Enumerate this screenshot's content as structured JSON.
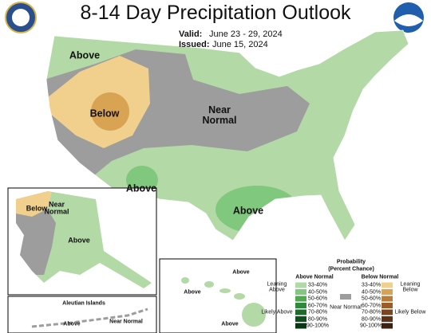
{
  "header": {
    "title": "8-14 Day Precipitation Outlook",
    "valid_label": "Valid:",
    "valid": "June 23 - 29, 2024",
    "issued_label": "Issued:",
    "issued": "June 15, 2024"
  },
  "map": {
    "labels": [
      "Above",
      "Below",
      "Near Normal",
      "Above",
      "Above"
    ],
    "alaska_labels": [
      "Below",
      "Near Normal",
      "Above"
    ],
    "aleutian_title": "Aleutian Islands",
    "aleutian_labels": [
      "Above",
      "Near Normal"
    ],
    "hawaii_labels": [
      "Above",
      "Above",
      "Above"
    ]
  },
  "legend": {
    "title": "Probability",
    "subtitle": "(Percent Chance)",
    "above_header": "Above Normal",
    "below_header": "Below Normal",
    "leaning_above": "Leaning Above",
    "likely_above": "Likely Above",
    "near_normal": "Near Normal",
    "leaning_below": "Leaning Below",
    "likely_below": "Likely Below",
    "classes": [
      "33-40%",
      "40-50%",
      "50-60%",
      "60-70%",
      "70-80%",
      "80-90%",
      "90-100%"
    ],
    "above_colors": [
      "#b3d9a6",
      "#80c87e",
      "#4fa94f",
      "#2c8a3a",
      "#1c6b2a",
      "#0e4f1c",
      "#083812"
    ],
    "below_colors": [
      "#f0d08c",
      "#d8a352",
      "#b97c3a",
      "#9b5e2b",
      "#7c4520",
      "#5e3118",
      "#3e1f10"
    ],
    "near_color": "#9d9d9d"
  }
}
